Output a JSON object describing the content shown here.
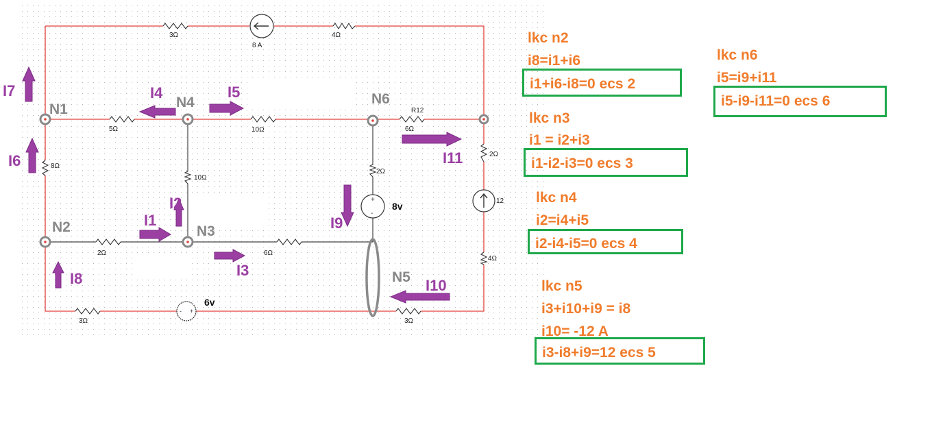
{
  "circuit": {
    "resistors": {
      "top_left": "3Ω",
      "top_right": "4Ω",
      "n1_n4": "5Ω",
      "n4_n6": "10Ω",
      "n6_right": "6Ω",
      "n6_right_name": "R12",
      "left": "8Ω",
      "n4_n3": "10Ω",
      "n6_down": "2Ω",
      "right_top": "2Ω",
      "right_bottom": "4Ω",
      "n2_n3": "2Ω",
      "n3_n5": "6Ω",
      "bottom_left": "3Ω",
      "bottom_right": "3Ω"
    },
    "sources": {
      "current_top": "8 A",
      "current_right": "12",
      "voltage_mid": "8v",
      "voltage_bottom": "6v"
    },
    "nodes": {
      "n1": "N1",
      "n2": "N2",
      "n3": "N3",
      "n4": "N4",
      "n5": "N5",
      "n6": "N6"
    },
    "currents": {
      "i1": "I1",
      "i2": "I2",
      "i3": "I3",
      "i4": "I4",
      "i5": "I5",
      "i6": "I6",
      "i7": "I7",
      "i8": "I8",
      "i9": "I9",
      "i10": "I10",
      "i11": "I11"
    },
    "colors": {
      "wire": "#e0403a",
      "node": "#888888",
      "arrow": "#9b3fa3",
      "label": "#888888"
    }
  },
  "equations": {
    "n2": {
      "title": "lkc n2",
      "line1": "i8=i1+i6",
      "boxed": "i1+i6-i8=0  ecs 2"
    },
    "n3": {
      "title": "lkc n3",
      "line1": "i1 = i2+i3",
      "boxed": "i1-i2-i3=0  ecs 3"
    },
    "n4": {
      "title": "lkc n4",
      "line1": "i2=i4+i5",
      "boxed": "i2-i4-i5=0 ecs 4"
    },
    "n5": {
      "title": "lkc n5",
      "line1": "i3+i10+i9 = i8",
      "line2": "i10= -12 A",
      "boxed": "i3-i8+i9=12  ecs 5"
    },
    "n6": {
      "title": "lkc n6",
      "line1": "i5=i9+i11",
      "boxed": "i5-i9-i11=0  ecs 6"
    },
    "colors": {
      "text": "#f07c2c",
      "box": "#1ea84a"
    }
  }
}
